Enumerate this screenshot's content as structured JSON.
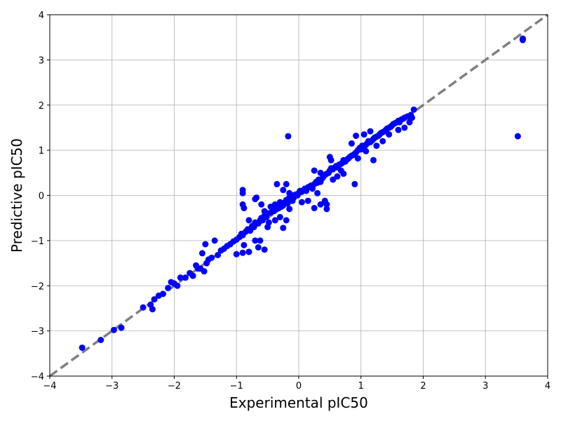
{
  "chart_data": {
    "type": "scatter",
    "xlabel": "Experimental pIC50",
    "ylabel": "Predictive pIC50",
    "xlim": [
      -4,
      4
    ],
    "ylim": [
      -4,
      4
    ],
    "xticks": [
      -4,
      -3,
      -2,
      -1,
      0,
      1,
      2,
      3,
      4
    ],
    "yticks": [
      -4,
      -3,
      -2,
      -1,
      0,
      1,
      2,
      3,
      4
    ],
    "xtick_labels": [
      "−4",
      "−3",
      "−2",
      "−1",
      "0",
      "1",
      "2",
      "3",
      "4"
    ],
    "ytick_labels": [
      "−4",
      "−3",
      "−2",
      "−1",
      "0",
      "1",
      "2",
      "3",
      "4"
    ],
    "grid": true,
    "point_color": "#0000ff",
    "reference_line": {
      "style": "dashed",
      "color": "#808080",
      "from": [
        -4,
        -4
      ],
      "to": [
        4,
        4
      ]
    },
    "points": [
      [
        -3.48,
        -3.37
      ],
      [
        -3.18,
        -3.2
      ],
      [
        -2.97,
        -2.98
      ],
      [
        -2.85,
        -2.93
      ],
      [
        -2.5,
        -2.48
      ],
      [
        -2.38,
        -2.42
      ],
      [
        -2.35,
        -2.52
      ],
      [
        -2.32,
        -2.3
      ],
      [
        -2.25,
        -2.22
      ],
      [
        -2.18,
        -2.18
      ],
      [
        -2.1,
        -2.05
      ],
      [
        -2.05,
        -1.92
      ],
      [
        -2.0,
        -1.95
      ],
      [
        -1.95,
        -2.0
      ],
      [
        -1.9,
        -1.82
      ],
      [
        -1.82,
        -1.82
      ],
      [
        -1.75,
        -1.72
      ],
      [
        -1.7,
        -1.78
      ],
      [
        -1.65,
        -1.55
      ],
      [
        -1.62,
        -1.62
      ],
      [
        -1.58,
        -1.62
      ],
      [
        -1.55,
        -1.28
      ],
      [
        -1.52,
        -1.68
      ],
      [
        -1.5,
        -1.08
      ],
      [
        -1.48,
        -1.5
      ],
      [
        -1.45,
        -1.42
      ],
      [
        -1.4,
        -1.38
      ],
      [
        -1.35,
        -1.0
      ],
      [
        -1.3,
        -1.32
      ],
      [
        -1.25,
        -1.22
      ],
      [
        -1.2,
        -1.18
      ],
      [
        -1.15,
        -1.12
      ],
      [
        -1.1,
        -1.08
      ],
      [
        -1.05,
        -1.02
      ],
      [
        -1.0,
        -0.98
      ],
      [
        -1.0,
        -1.3
      ],
      [
        -0.95,
        -0.92
      ],
      [
        -0.92,
        -0.85
      ],
      [
        -0.9,
        -0.88
      ],
      [
        -0.88,
        -1.1
      ],
      [
        -0.85,
        -0.8
      ],
      [
        -0.82,
        -0.75
      ],
      [
        -0.8,
        -0.55
      ],
      [
        -0.8,
        -1.25
      ],
      [
        -0.78,
        -0.78
      ],
      [
        -0.75,
        -0.68
      ],
      [
        -0.72,
        -0.7
      ],
      [
        -0.7,
        -0.6
      ],
      [
        -0.7,
        -1.0
      ],
      [
        -0.68,
        -0.05
      ],
      [
        -0.65,
        -0.62
      ],
      [
        -0.62,
        -0.55
      ],
      [
        -0.6,
        -0.5
      ],
      [
        -0.58,
        -0.55
      ],
      [
        -0.55,
        -0.45
      ],
      [
        -0.52,
        -0.48
      ],
      [
        -0.5,
        -0.4
      ],
      [
        -0.48,
        -0.6
      ],
      [
        -0.45,
        -0.38
      ],
      [
        -0.42,
        -0.32
      ],
      [
        -0.4,
        -0.35
      ],
      [
        -0.38,
        -0.2
      ],
      [
        -0.35,
        -0.3
      ],
      [
        -0.32,
        -0.28
      ],
      [
        -0.3,
        -0.15
      ],
      [
        -0.28,
        -0.25
      ],
      [
        -0.25,
        -0.22
      ],
      [
        -0.22,
        -0.15
      ],
      [
        -0.2,
        -0.1
      ],
      [
        -0.18,
        -0.18
      ],
      [
        -0.15,
        -0.05
      ],
      [
        -0.12,
        -0.08
      ],
      [
        -0.1,
        0.0
      ],
      [
        -0.08,
        -0.05
      ],
      [
        -0.05,
        0.02
      ],
      [
        -0.02,
        0.0
      ],
      [
        0.0,
        0.05
      ],
      [
        0.02,
        0.1
      ],
      [
        0.05,
        0.08
      ],
      [
        0.08,
        0.12
      ],
      [
        0.1,
        0.15
      ],
      [
        0.12,
        0.1
      ],
      [
        0.15,
        0.18
      ],
      [
        0.18,
        0.2
      ],
      [
        0.2,
        0.22
      ],
      [
        0.22,
        0.15
      ],
      [
        0.25,
        0.25
      ],
      [
        0.28,
        0.3
      ],
      [
        0.3,
        0.28
      ],
      [
        0.32,
        0.35
      ],
      [
        0.35,
        0.3
      ],
      [
        0.38,
        0.38
      ],
      [
        0.4,
        0.42
      ],
      [
        0.42,
        0.45
      ],
      [
        0.45,
        0.48
      ],
      [
        0.48,
        0.5
      ],
      [
        0.5,
        0.55
      ],
      [
        0.52,
        0.6
      ],
      [
        0.55,
        0.58
      ],
      [
        0.58,
        0.62
      ],
      [
        0.6,
        0.65
      ],
      [
        0.62,
        0.62
      ],
      [
        0.65,
        0.68
      ],
      [
        0.68,
        0.7
      ],
      [
        0.7,
        0.72
      ],
      [
        0.72,
        0.78
      ],
      [
        0.75,
        0.75
      ],
      [
        0.78,
        0.8
      ],
      [
        0.8,
        0.82
      ],
      [
        0.82,
        0.85
      ],
      [
        0.85,
        0.88
      ],
      [
        0.88,
        0.9
      ],
      [
        0.9,
        0.92
      ],
      [
        0.92,
        0.95
      ],
      [
        0.95,
        1.0
      ],
      [
        0.98,
        1.05
      ],
      [
        1.0,
        1.02
      ],
      [
        1.02,
        1.1
      ],
      [
        1.05,
        1.08
      ],
      [
        1.08,
        1.12
      ],
      [
        1.1,
        1.15
      ],
      [
        1.12,
        1.2
      ],
      [
        1.15,
        1.18
      ],
      [
        1.18,
        1.22
      ],
      [
        1.2,
        1.25
      ],
      [
        1.22,
        1.28
      ],
      [
        1.25,
        1.3
      ],
      [
        1.28,
        1.32
      ],
      [
        1.3,
        1.35
      ],
      [
        1.32,
        1.38
      ],
      [
        1.35,
        1.4
      ],
      [
        1.38,
        1.42
      ],
      [
        1.4,
        1.45
      ],
      [
        1.42,
        1.48
      ],
      [
        1.45,
        1.5
      ],
      [
        1.48,
        1.52
      ],
      [
        1.5,
        1.55
      ],
      [
        1.52,
        1.58
      ],
      [
        1.55,
        1.6
      ],
      [
        1.58,
        1.62
      ],
      [
        1.6,
        1.65
      ],
      [
        1.62,
        1.62
      ],
      [
        1.65,
        1.68
      ],
      [
        1.68,
        1.7
      ],
      [
        1.7,
        1.72
      ],
      [
        1.75,
        1.75
      ],
      [
        1.8,
        1.78
      ],
      [
        1.85,
        1.9
      ],
      [
        -0.9,
        0.12
      ],
      [
        -0.9,
        0.05
      ],
      [
        -0.9,
        -0.2
      ],
      [
        -0.88,
        -0.28
      ],
      [
        -0.8,
        -1.25
      ],
      [
        -0.9,
        -1.27
      ],
      [
        -0.55,
        -1.2
      ],
      [
        -0.65,
        -1.15
      ],
      [
        -0.62,
        -1.0
      ],
      [
        -0.7,
        -0.08
      ],
      [
        -0.6,
        -0.2
      ],
      [
        -0.55,
        -0.35
      ],
      [
        -0.45,
        -0.25
      ],
      [
        -0.3,
        -0.48
      ],
      [
        -0.25,
        -0.72
      ],
      [
        -0.5,
        -0.7
      ],
      [
        -0.38,
        -0.55
      ],
      [
        -0.2,
        -0.55
      ],
      [
        -0.15,
        -0.3
      ],
      [
        -0.35,
        0.25
      ],
      [
        -0.25,
        0.12
      ],
      [
        -0.2,
        0.25
      ],
      [
        -0.15,
        0.05
      ],
      [
        -0.1,
        -0.12
      ],
      [
        0.05,
        -0.15
      ],
      [
        0.15,
        -0.12
      ],
      [
        0.25,
        -0.28
      ],
      [
        0.3,
        0.05
      ],
      [
        0.35,
        -0.2
      ],
      [
        0.42,
        -0.12
      ],
      [
        0.45,
        -0.3
      ],
      [
        0.45,
        -0.2
      ],
      [
        0.25,
        0.55
      ],
      [
        0.35,
        0.5
      ],
      [
        0.5,
        0.85
      ],
      [
        0.52,
        0.78
      ],
      [
        0.55,
        0.35
      ],
      [
        0.62,
        0.42
      ],
      [
        0.68,
        0.55
      ],
      [
        0.72,
        0.48
      ],
      [
        0.85,
        1.15
      ],
      [
        0.9,
        0.25
      ],
      [
        0.92,
        1.32
      ],
      [
        0.95,
        0.82
      ],
      [
        1.05,
        1.35
      ],
      [
        1.08,
        0.98
      ],
      [
        1.15,
        1.42
      ],
      [
        1.2,
        0.78
      ],
      [
        1.25,
        1.1
      ],
      [
        1.35,
        1.2
      ],
      [
        1.45,
        1.35
      ],
      [
        1.6,
        1.45
      ],
      [
        1.7,
        1.5
      ],
      [
        1.78,
        1.62
      ],
      [
        1.82,
        1.72
      ],
      [
        -0.17,
        1.31
      ],
      [
        3.52,
        1.31
      ],
      [
        3.6,
        3.44
      ],
      [
        3.6,
        3.47
      ]
    ]
  }
}
